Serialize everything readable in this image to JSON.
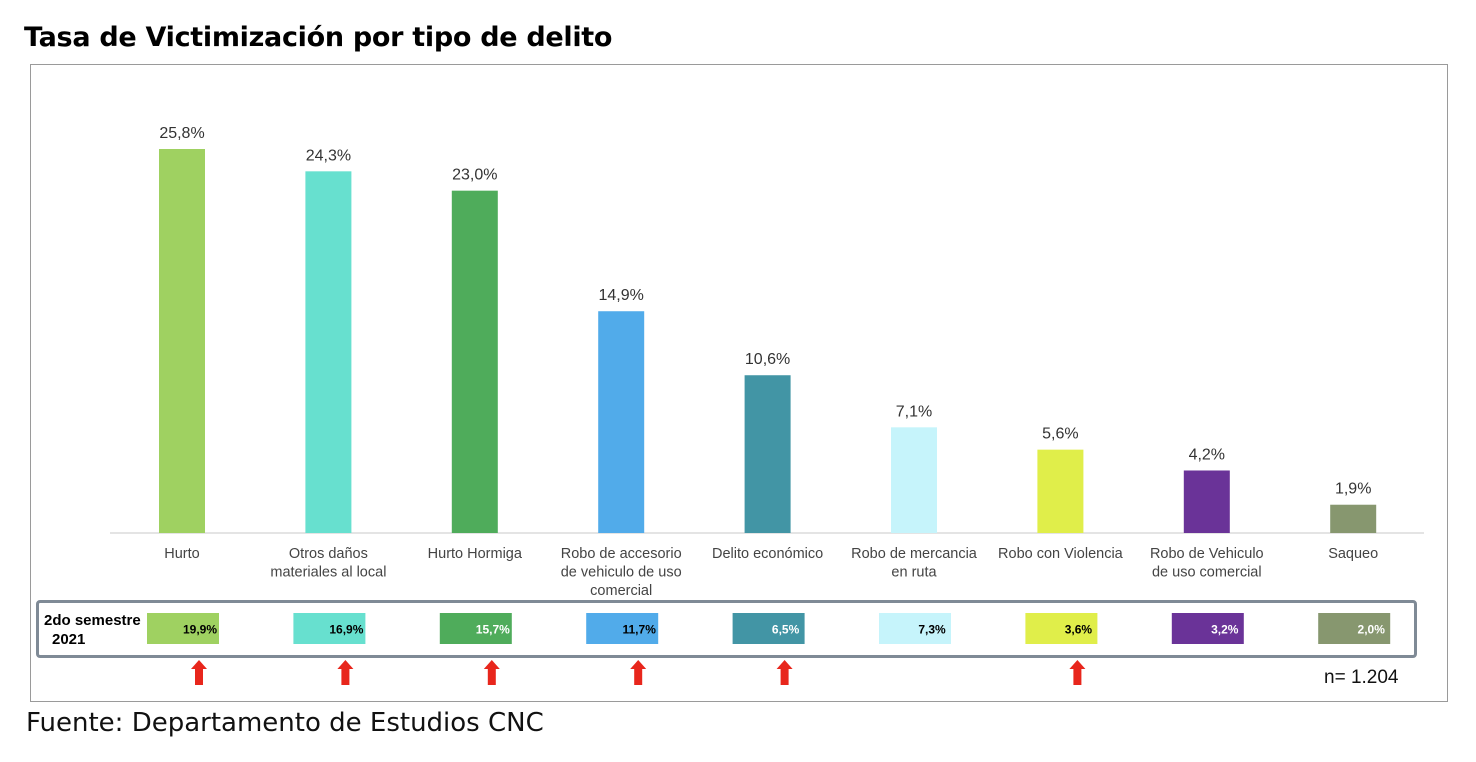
{
  "title": "Tasa de Victimización por tipo de delito",
  "source": "Fuente: Departamento de Estudios CNC",
  "sample_size": "n= 1.204",
  "previous_period_label_line1": "2do semestre",
  "previous_period_label_line2": "2021",
  "chart_data": {
    "type": "bar",
    "title": "Tasa de Victimización por tipo de delito",
    "categories": [
      [
        "Hurto"
      ],
      [
        "Otros daños",
        "materiales al local"
      ],
      [
        "Hurto Hormiga"
      ],
      [
        "Robo de accesorio",
        "de vehiculo de uso",
        "comercial"
      ],
      [
        "Delito económico"
      ],
      [
        "Robo de mercancia",
        "en ruta"
      ],
      [
        "Robo con Violencia"
      ],
      [
        "Robo de Vehiculo",
        "de uso comercial"
      ],
      [
        "Saqueo"
      ]
    ],
    "values": [
      25.8,
      24.3,
      23.0,
      14.9,
      10.6,
      7.1,
      5.6,
      4.2,
      1.9
    ],
    "value_labels": [
      "25,8%",
      "24,3%",
      "23,0%",
      "14,9%",
      "10,6%",
      "7,1%",
      "5,6%",
      "4,2%",
      "1,9%"
    ],
    "colors": [
      "#9fd161",
      "#67e0cf",
      "#4fac5b",
      "#51abea",
      "#4295a5",
      "#c6f4fb",
      "#e0ee4a",
      "#6a3398",
      "#87976f"
    ],
    "ylim": [
      0,
      27
    ],
    "previous_period": {
      "name": "2do semestre 2021",
      "values": [
        19.9,
        16.9,
        15.7,
        11.7,
        6.5,
        7.3,
        3.6,
        3.2,
        2.0
      ],
      "value_labels": [
        "19,9%",
        "16,9%",
        "15,7%",
        "11,7%",
        "6,5%",
        "7,3%",
        "3,6%",
        "3,2%",
        "2,0%"
      ],
      "label_colors": [
        "#000000",
        "#000000",
        "#ffffff",
        "#000000",
        "#ffffff",
        "#000000",
        "#000000",
        "#ffffff",
        "#ffffff"
      ]
    },
    "increase_arrows": [
      true,
      true,
      true,
      true,
      true,
      false,
      true,
      false,
      false
    ],
    "arrow_color": "#e8261c"
  }
}
